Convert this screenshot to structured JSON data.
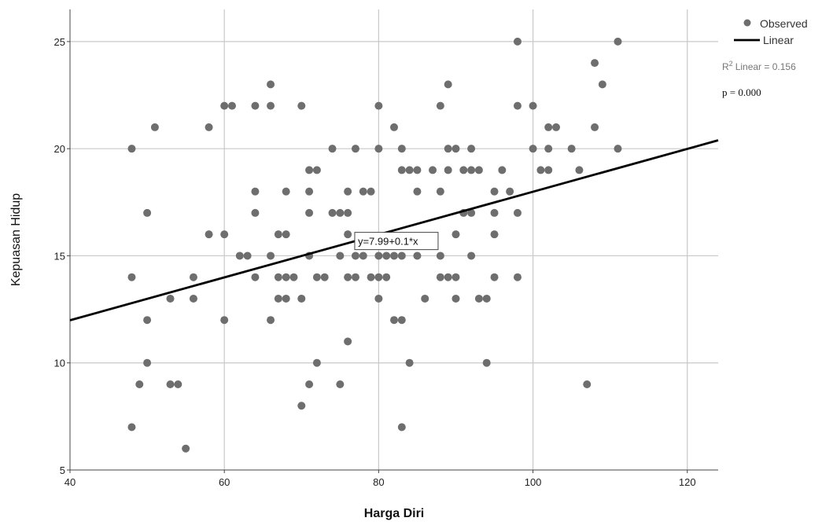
{
  "chart_data": {
    "type": "scatter",
    "xlabel": "Harga Diri",
    "ylabel": "Kepuasan Hidup",
    "xlim": [
      40,
      124
    ],
    "ylim": [
      5,
      26.5
    ],
    "xticks": [
      40,
      60,
      80,
      100,
      120
    ],
    "yticks": [
      5,
      10,
      15,
      20,
      25
    ],
    "grid": true,
    "legend": {
      "position": "top-right",
      "entries": [
        {
          "label": "Observed",
          "marker": "circle",
          "color": "#6e6e6e"
        },
        {
          "label": "Linear",
          "marker": "line",
          "color": "#000000"
        }
      ]
    },
    "r2_label": "Linear = 0.156",
    "r2_prefix": "R",
    "r2_sup": "2",
    "p_label": "p = 0.000",
    "equation_label": "y=7.99+0.1*x",
    "fit": {
      "intercept": 7.99,
      "slope": 0.1
    },
    "point_color": "#6e6e6e",
    "series": [
      {
        "name": "Observed",
        "points": [
          [
            48,
            20
          ],
          [
            48,
            14
          ],
          [
            48,
            7
          ],
          [
            49,
            9
          ],
          [
            50,
            17
          ],
          [
            50,
            12
          ],
          [
            50,
            10
          ],
          [
            51,
            21
          ],
          [
            53,
            13
          ],
          [
            53,
            9
          ],
          [
            54,
            9
          ],
          [
            55,
            6
          ],
          [
            56,
            14
          ],
          [
            56,
            13
          ],
          [
            58,
            21
          ],
          [
            58,
            16
          ],
          [
            60,
            22
          ],
          [
            60,
            16
          ],
          [
            60,
            12
          ],
          [
            61,
            22
          ],
          [
            62,
            15
          ],
          [
            63,
            15
          ],
          [
            64,
            22
          ],
          [
            64,
            18
          ],
          [
            64,
            17
          ],
          [
            64,
            14
          ],
          [
            66,
            23
          ],
          [
            66,
            22
          ],
          [
            66,
            15
          ],
          [
            66,
            12
          ],
          [
            67,
            16
          ],
          [
            67,
            14
          ],
          [
            67,
            13
          ],
          [
            68,
            18
          ],
          [
            68,
            16
          ],
          [
            68,
            14
          ],
          [
            68,
            13
          ],
          [
            69,
            14
          ],
          [
            70,
            22
          ],
          [
            70,
            13
          ],
          [
            70,
            8
          ],
          [
            71,
            18
          ],
          [
            71,
            17
          ],
          [
            71,
            15
          ],
          [
            71,
            19
          ],
          [
            71,
            9
          ],
          [
            72,
            19
          ],
          [
            72,
            14
          ],
          [
            72,
            10
          ],
          [
            73,
            14
          ],
          [
            74,
            20
          ],
          [
            74,
            17
          ],
          [
            75,
            17
          ],
          [
            75,
            15
          ],
          [
            75,
            9
          ],
          [
            76,
            18
          ],
          [
            76,
            17
          ],
          [
            76,
            16
          ],
          [
            76,
            14
          ],
          [
            76,
            11
          ],
          [
            77,
            20
          ],
          [
            77,
            15
          ],
          [
            77,
            14
          ],
          [
            78,
            18
          ],
          [
            78,
            15
          ],
          [
            79,
            18
          ],
          [
            79,
            14
          ],
          [
            80,
            22
          ],
          [
            80,
            20
          ],
          [
            80,
            15
          ],
          [
            80,
            14
          ],
          [
            80,
            13
          ],
          [
            81,
            15
          ],
          [
            81,
            14
          ],
          [
            82,
            21
          ],
          [
            82,
            15
          ],
          [
            82,
            12
          ],
          [
            83,
            20
          ],
          [
            83,
            19
          ],
          [
            83,
            15
          ],
          [
            83,
            12
          ],
          [
            83,
            7
          ],
          [
            84,
            19
          ],
          [
            84,
            10
          ],
          [
            85,
            19
          ],
          [
            85,
            18
          ],
          [
            85,
            15
          ],
          [
            86,
            13
          ],
          [
            87,
            19
          ],
          [
            88,
            22
          ],
          [
            88,
            18
          ],
          [
            88,
            15
          ],
          [
            88,
            14
          ],
          [
            89,
            23
          ],
          [
            89,
            20
          ],
          [
            89,
            19
          ],
          [
            89,
            14
          ],
          [
            90,
            20
          ],
          [
            90,
            16
          ],
          [
            90,
            14
          ],
          [
            90,
            13
          ],
          [
            91,
            19
          ],
          [
            91,
            17
          ],
          [
            92,
            20
          ],
          [
            92,
            19
          ],
          [
            92,
            17
          ],
          [
            92,
            15
          ],
          [
            93,
            19
          ],
          [
            93,
            13
          ],
          [
            94,
            13
          ],
          [
            94,
            10
          ],
          [
            95,
            18
          ],
          [
            95,
            17
          ],
          [
            95,
            16
          ],
          [
            95,
            14
          ],
          [
            96,
            19
          ],
          [
            97,
            18
          ],
          [
            98,
            25
          ],
          [
            98,
            22
          ],
          [
            98,
            17
          ],
          [
            98,
            14
          ],
          [
            100,
            22
          ],
          [
            100,
            20
          ],
          [
            101,
            19
          ],
          [
            102,
            21
          ],
          [
            102,
            20
          ],
          [
            102,
            19
          ],
          [
            103,
            21
          ],
          [
            105,
            20
          ],
          [
            106,
            19
          ],
          [
            107,
            9
          ],
          [
            108,
            24
          ],
          [
            108,
            21
          ],
          [
            109,
            23
          ],
          [
            111,
            25
          ],
          [
            111,
            20
          ]
        ]
      }
    ]
  }
}
